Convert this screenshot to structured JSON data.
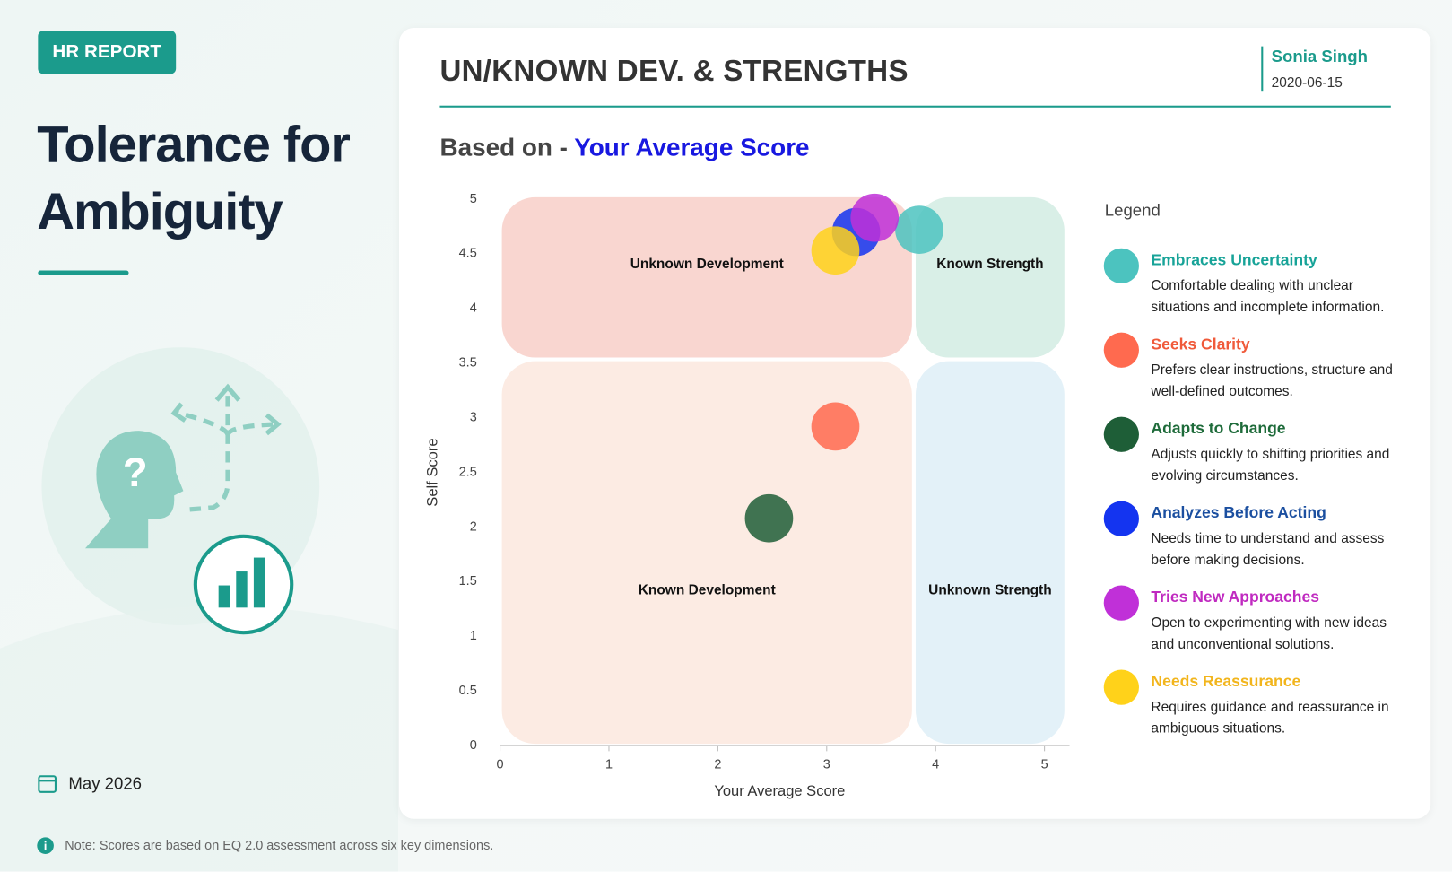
{
  "header": {
    "badge": "HR REPORT",
    "title": "Tolerance for Ambiguity",
    "date": "May 2026",
    "note": "Note: Scores are based on EQ 2.0 assessment across six key dimensions."
  },
  "card": {
    "title": "UN/KNOWN DEV. & STRENGTHS",
    "name": "Sonia Singh",
    "date": "2020-06-15"
  },
  "chart_data": {
    "type": "scatter",
    "subtitle_prefix": "Based on -",
    "subtitle_highlight": "Your Average Score",
    "xlabel": "Your Average Score",
    "ylabel": "Self Score",
    "xlim": [
      0,
      5.23
    ],
    "xticks": [
      0,
      1,
      2,
      3,
      4,
      5
    ],
    "ylim": [
      0,
      5
    ],
    "yticks": [
      0,
      0.5,
      1,
      1.5,
      2,
      2.5,
      3,
      3.5,
      4,
      4.5,
      5
    ],
    "legend_title": "Legend",
    "legend_position": "right",
    "regions": [
      {
        "label": "Unknown Development",
        "x": [
          0,
          3.8
        ],
        "y": [
          3.5,
          5
        ],
        "color": "#f9d6d0"
      },
      {
        "label": "Known Strength",
        "x": [
          3.8,
          5.2
        ],
        "y": [
          3.5,
          5
        ],
        "color": "#d9efe7"
      },
      {
        "label": "Known Development",
        "x": [
          0,
          3.8
        ],
        "y": [
          0,
          3.5
        ],
        "color": "#fcebe3"
      },
      {
        "label": "Unknown Strength",
        "x": [
          3.8,
          5.2
        ],
        "y": [
          0,
          3.5
        ],
        "color": "#e3f1f8"
      }
    ],
    "series": [
      {
        "name": "Embraces Uncertainty",
        "color": "#4cc3bf",
        "text_color": "#17a398",
        "description": "Comfortable dealing with unclear situations and incomplete information.",
        "x": [
          3.85
        ],
        "y": [
          4.72
        ]
      },
      {
        "name": "Seeks Clarity",
        "color": "#ff6a4f",
        "text_color": "#f05a3a",
        "description": "Prefers clear instructions, structure and well-defined outcomes.",
        "x": [
          3.08
        ],
        "y": [
          2.92
        ]
      },
      {
        "name": "Adapts to Change",
        "color": "#1e5e37",
        "text_color": "#1e6b3a",
        "description": "Adjusts quickly to shifting priorities and evolving circumstances.",
        "x": [
          2.47
        ],
        "y": [
          2.08
        ]
      },
      {
        "name": "Analyzes Before Acting",
        "color": "#1434f0",
        "text_color": "#1b4fa0",
        "description": "Needs time to understand and assess before making decisions.",
        "x": [
          3.27
        ],
        "y": [
          4.7
        ]
      },
      {
        "name": "Tries New Approaches",
        "color": "#c030d8",
        "text_color": "#c02ac0",
        "description": "Open to experimenting with new ideas and unconventional solutions.",
        "x": [
          3.44
        ],
        "y": [
          4.83
        ]
      },
      {
        "name": "Needs Reassurance",
        "color": "#ffd21a",
        "text_color": "#f2b51c",
        "description": "Requires guidance and reassurance in ambiguous situations.",
        "x": [
          3.08
        ],
        "y": [
          4.53
        ]
      }
    ]
  }
}
